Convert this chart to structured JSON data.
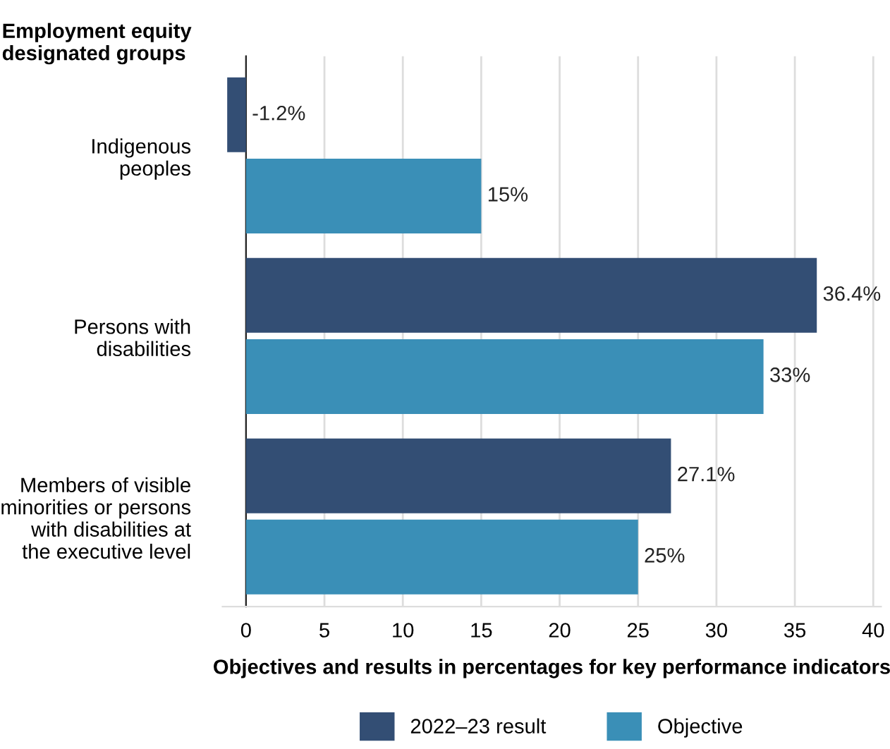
{
  "chart_data": {
    "type": "bar",
    "orientation": "horizontal",
    "ylabel": "Employment equity\ndesignated groups",
    "xlabel": "Objectives and results in percentages for key performance indicators",
    "categories": [
      "Indigenous\npeoples",
      "Persons with\ndisabilities",
      "Members of visible\nminorities or persons\nwith disabilities at\nthe executive level"
    ],
    "series": [
      {
        "name": "2022–23 result",
        "color": "#334e74",
        "values": [
          -1.2,
          36.4,
          27.1
        ],
        "value_labels": [
          "-1.2%",
          "36.4%",
          "27.1%"
        ]
      },
      {
        "name": "Objective",
        "color": "#3a8fb7",
        "values": [
          15,
          33,
          25
        ],
        "value_labels": [
          "15%",
          "33%",
          "25%"
        ]
      }
    ],
    "xlim": [
      -1.5,
      40.5
    ],
    "xticks": [
      0,
      5,
      10,
      15,
      20,
      25,
      30,
      35,
      40
    ],
    "grid": "x",
    "legend": "bottom"
  }
}
